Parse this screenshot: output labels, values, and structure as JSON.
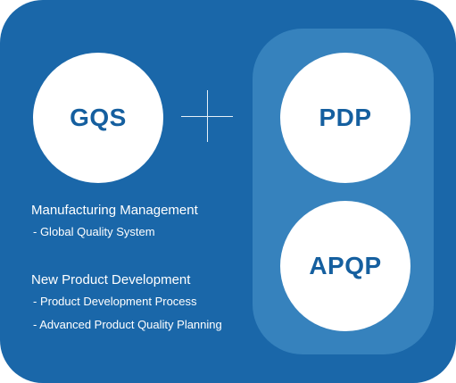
{
  "circles": {
    "gqs": "GQS",
    "pdp": "PDP",
    "apqp": "APQP"
  },
  "sections": [
    {
      "heading": "Manufacturing Management",
      "items": [
        "- Global Quality System"
      ]
    },
    {
      "heading": "New Product Development",
      "items": [
        "- Product Development Process",
        "- Advanced Product Quality Planning"
      ]
    }
  ],
  "colors": {
    "background": "#1a67a9",
    "group_box": "#3682bd",
    "circle_fill": "#ffffff",
    "circle_text": "#155f9f",
    "body_text": "#ffffff"
  }
}
